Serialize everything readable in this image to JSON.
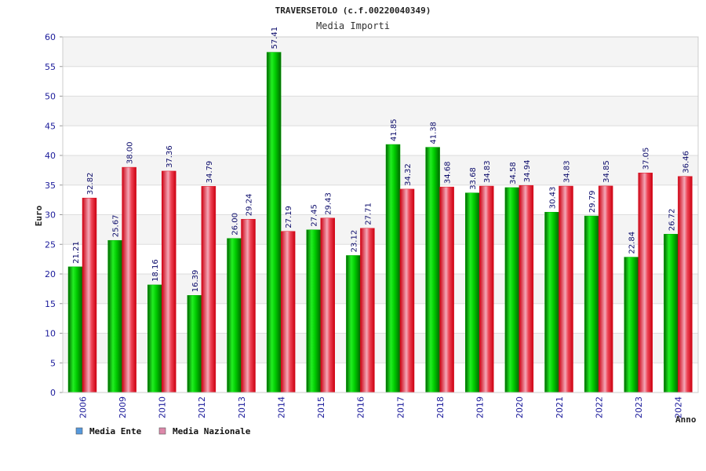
{
  "chart_data": {
    "type": "bar",
    "title": "TRAVERSETOLO (c.f.00220040349)",
    "subtitle": "Media Importi",
    "xlabel": "Anno",
    "ylabel": "Euro",
    "ylim": [
      0,
      60
    ],
    "yticks": [
      0,
      5,
      10,
      15,
      20,
      25,
      30,
      35,
      40,
      45,
      50,
      55,
      60
    ],
    "grid": true,
    "legend_position": "bottom-left",
    "categories": [
      "2006",
      "2009",
      "2010",
      "2012",
      "2013",
      "2014",
      "2015",
      "2016",
      "2017",
      "2018",
      "2019",
      "2020",
      "2021",
      "2022",
      "2023",
      "2024"
    ],
    "series": [
      {
        "name": "Media Ente",
        "color": "#00aa00",
        "legend_color": "#5599dd",
        "values": [
          21.21,
          25.67,
          18.16,
          16.39,
          26.0,
          57.41,
          27.45,
          23.12,
          41.85,
          41.38,
          33.68,
          34.58,
          30.43,
          29.79,
          22.84,
          26.72
        ],
        "labels": [
          "21.21",
          "25.67",
          "18.16",
          "16.39",
          "26.00",
          "57.41",
          "27.45",
          "23.12",
          "41.85",
          "41.38",
          "33.68",
          "34.58",
          "30.43",
          "29.79",
          "22.84",
          "26.72"
        ]
      },
      {
        "name": "Media Nazionale",
        "color": "#dd1122",
        "legend_color": "#dd88aa",
        "values": [
          32.82,
          38.0,
          37.36,
          34.79,
          29.24,
          27.19,
          29.43,
          27.71,
          34.32,
          34.68,
          34.83,
          34.94,
          34.83,
          34.85,
          37.05,
          36.46
        ],
        "labels": [
          "32.82",
          "38.00",
          "37.36",
          "34.79",
          "29.24",
          "27.19",
          "29.43",
          "27.71",
          "34.32",
          "34.68",
          "34.83",
          "34.94",
          "34.83",
          "34.85",
          "37.05",
          "36.46"
        ]
      }
    ]
  }
}
